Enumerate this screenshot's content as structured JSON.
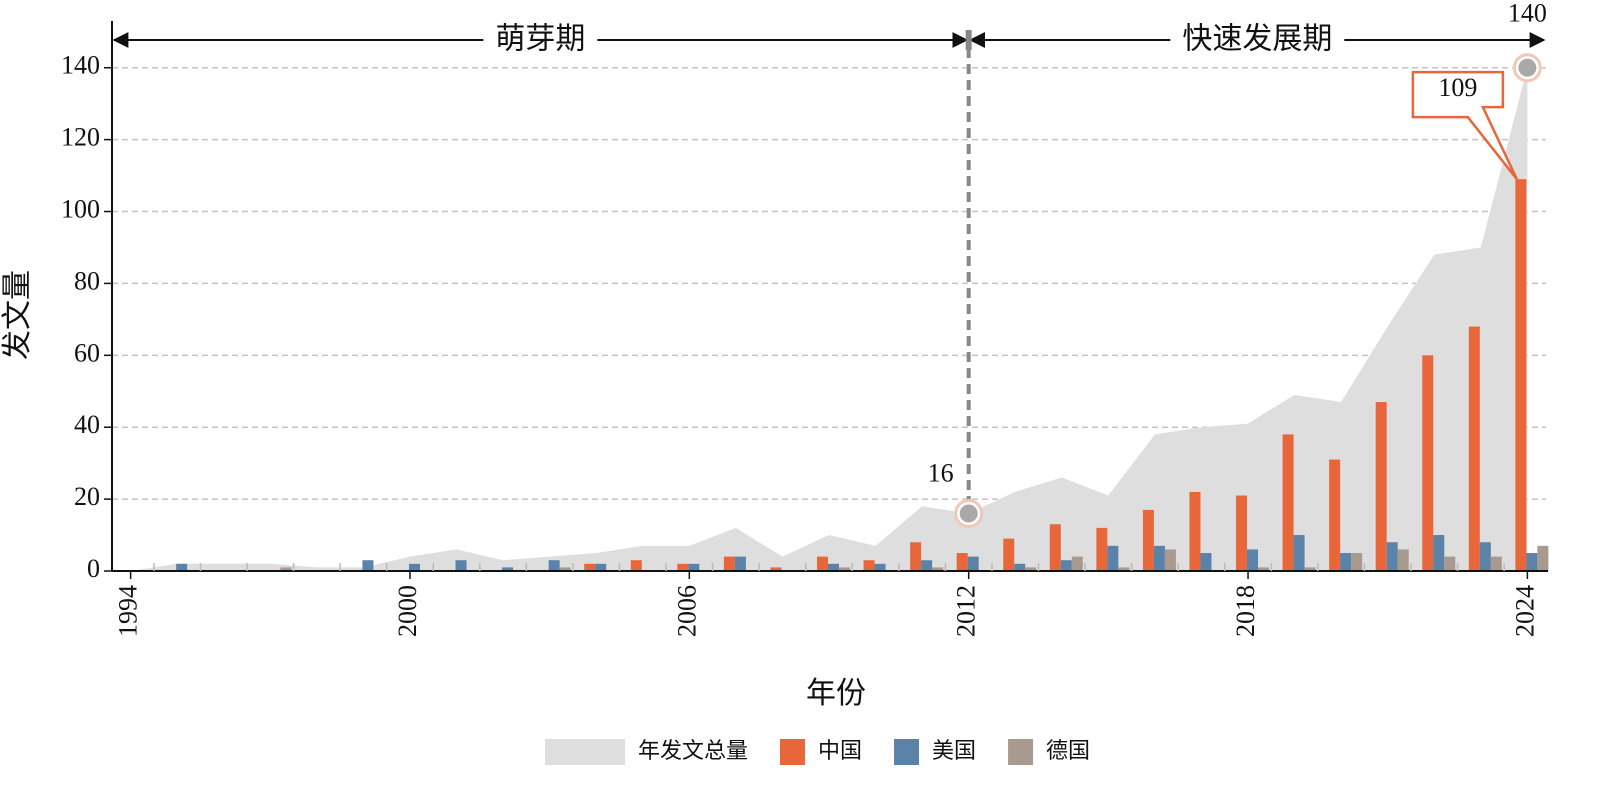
{
  "chart_data": {
    "type": "combo",
    "x_label": "年份",
    "y_label": "发文量",
    "x": [
      1994,
      1995,
      1996,
      1997,
      1998,
      1999,
      2000,
      2001,
      2002,
      2003,
      2004,
      2005,
      2006,
      2007,
      2008,
      2009,
      2010,
      2011,
      2012,
      2013,
      2014,
      2015,
      2016,
      2017,
      2018,
      2019,
      2020,
      2021,
      2022,
      2023,
      2024
    ],
    "xlim": [
      1993.6,
      2024.4
    ],
    "xticks": [
      1994,
      2000,
      2006,
      2012,
      2018,
      2024
    ],
    "ylim": [
      0,
      153
    ],
    "yticks": [
      0,
      20,
      40,
      60,
      80,
      100,
      120,
      140
    ],
    "grid": true,
    "phases": [
      {
        "label": "萌芽期",
        "start": 1993.6,
        "end": 2012
      },
      {
        "label": "快速发展期",
        "start": 2012,
        "end": 2024.4
      }
    ],
    "series": [
      {
        "name": "年发文总量",
        "type": "area",
        "color": "#dedede",
        "values": [
          0,
          2,
          2,
          2,
          1,
          1,
          4,
          6,
          3,
          4,
          5,
          7,
          7,
          12,
          4,
          10,
          7,
          18,
          16,
          22,
          26,
          21,
          38,
          40,
          41,
          49,
          47,
          68,
          88,
          90,
          140
        ],
        "value_labels": [
          null,
          null,
          null,
          null,
          null,
          null,
          null,
          null,
          null,
          null,
          null,
          null,
          null,
          null,
          null,
          null,
          null,
          null,
          "16",
          null,
          null,
          null,
          null,
          null,
          null,
          null,
          null,
          null,
          null,
          null,
          "140"
        ]
      },
      {
        "name": "中国",
        "type": "bar",
        "color": "#e8673a",
        "values": [
          0,
          0,
          0,
          0,
          0,
          0,
          0,
          0,
          0,
          0,
          2,
          3,
          2,
          4,
          1,
          4,
          3,
          8,
          5,
          9,
          13,
          12,
          17,
          22,
          21,
          38,
          31,
          47,
          60,
          68,
          109
        ],
        "value_labels": [
          null,
          null,
          null,
          null,
          null,
          null,
          null,
          null,
          null,
          null,
          null,
          null,
          null,
          null,
          null,
          null,
          null,
          null,
          null,
          null,
          null,
          null,
          null,
          null,
          null,
          null,
          null,
          null,
          null,
          null,
          "109"
        ]
      },
      {
        "name": "美国",
        "type": "bar",
        "color": "#5b82a8",
        "values": [
          0,
          2,
          0,
          0,
          0,
          3,
          2,
          3,
          1,
          3,
          2,
          0,
          2,
          4,
          0,
          2,
          2,
          3,
          4,
          2,
          3,
          7,
          7,
          5,
          6,
          10,
          5,
          8,
          10,
          8,
          5
        ]
      },
      {
        "name": "德国",
        "type": "bar",
        "color": "#a89a8f",
        "values": [
          0,
          0,
          0,
          1,
          0,
          0,
          0,
          0,
          0,
          1,
          0,
          0,
          0,
          0,
          0,
          1,
          0,
          1,
          0,
          1,
          4,
          1,
          6,
          0,
          1,
          1,
          5,
          6,
          4,
          4,
          7
        ]
      }
    ]
  }
}
